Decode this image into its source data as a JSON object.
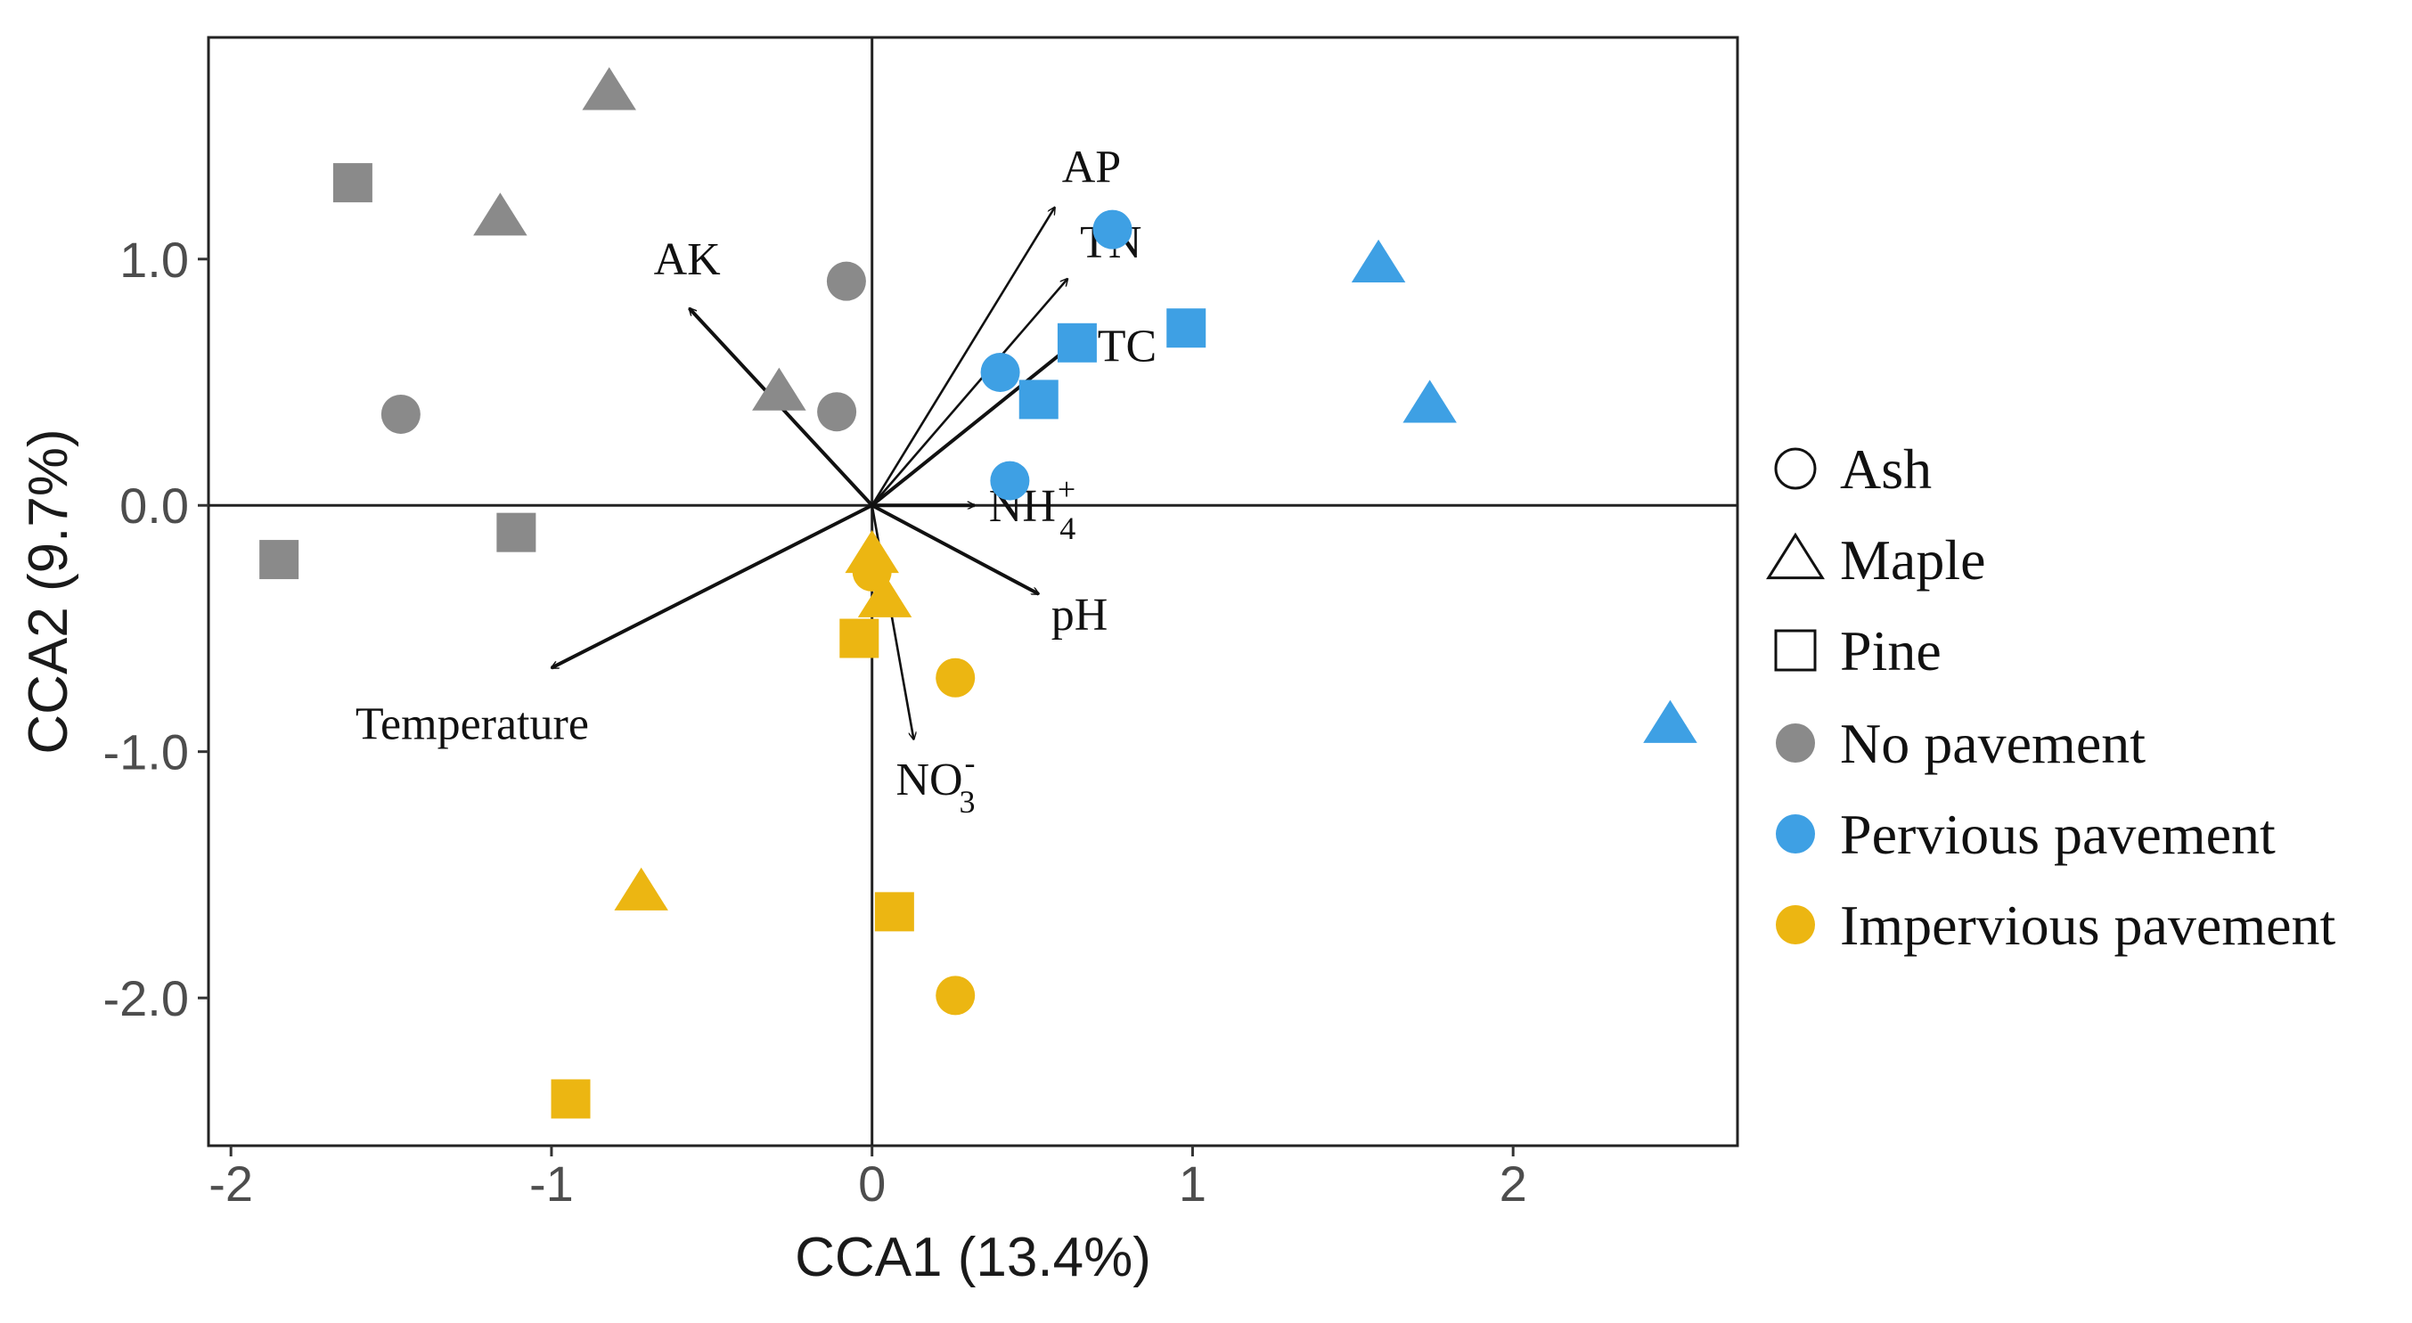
{
  "chart_data": {
    "type": "scatter",
    "title": "",
    "xlabel": "CCA1 (13.4%)",
    "ylabel": "CCA2 (9.7%)",
    "xlim": [
      -2.07,
      2.7
    ],
    "ylim": [
      -2.6,
      1.9
    ],
    "xticks": [
      -2,
      -1,
      0,
      1,
      2
    ],
    "xtick_labels": [
      "-2",
      "-1",
      "0",
      "1",
      "2"
    ],
    "yticks": [
      -2.0,
      -1.0,
      0.0,
      1.0
    ],
    "ytick_labels": [
      "-2.0",
      "-1.0",
      "0.0",
      "1.0"
    ],
    "grid": false,
    "legend_position": "right",
    "colors": {
      "no_pavement": "#8a8a8a",
      "pervious": "#3ea0e4",
      "impervious": "#ecb612"
    },
    "points": [
      {
        "group": "no_pavement",
        "shape": "triangle",
        "x": -0.82,
        "y": 1.68
      },
      {
        "group": "no_pavement",
        "shape": "square",
        "x": -1.62,
        "y": 1.31
      },
      {
        "group": "no_pavement",
        "shape": "triangle",
        "x": -1.16,
        "y": 1.17
      },
      {
        "group": "no_pavement",
        "shape": "circle",
        "x": -0.08,
        "y": 0.91
      },
      {
        "group": "no_pavement",
        "shape": "triangle",
        "x": -0.29,
        "y": 0.46
      },
      {
        "group": "no_pavement",
        "shape": "circle",
        "x": -1.47,
        "y": 0.37
      },
      {
        "group": "no_pavement",
        "shape": "circle",
        "x": -0.11,
        "y": 0.38
      },
      {
        "group": "no_pavement",
        "shape": "square",
        "x": -1.85,
        "y": -0.22
      },
      {
        "group": "no_pavement",
        "shape": "square",
        "x": -1.11,
        "y": -0.11
      },
      {
        "group": "pervious",
        "shape": "circle",
        "x": 0.75,
        "y": 1.12
      },
      {
        "group": "pervious",
        "shape": "triangle",
        "x": 1.58,
        "y": 0.98
      },
      {
        "group": "pervious",
        "shape": "square",
        "x": 0.98,
        "y": 0.72
      },
      {
        "group": "pervious",
        "shape": "square",
        "x": 0.64,
        "y": 0.66
      },
      {
        "group": "pervious",
        "shape": "circle",
        "x": 0.4,
        "y": 0.54
      },
      {
        "group": "pervious",
        "shape": "square",
        "x": 0.52,
        "y": 0.43
      },
      {
        "group": "pervious",
        "shape": "triangle",
        "x": 1.74,
        "y": 0.41
      },
      {
        "group": "pervious",
        "shape": "circle",
        "x": 0.43,
        "y": 0.1
      },
      {
        "group": "pervious",
        "shape": "triangle",
        "x": 2.49,
        "y": -0.89
      },
      {
        "group": "impervious",
        "shape": "triangle",
        "x": 0.0,
        "y": -0.2
      },
      {
        "group": "impervious",
        "shape": "circle",
        "x": 0.0,
        "y": -0.27
      },
      {
        "group": "impervious",
        "shape": "triangle",
        "x": 0.04,
        "y": -0.38
      },
      {
        "group": "impervious",
        "shape": "square",
        "x": -0.04,
        "y": -0.54
      },
      {
        "group": "impervious",
        "shape": "circle",
        "x": 0.26,
        "y": -0.7
      },
      {
        "group": "impervious",
        "shape": "triangle",
        "x": -0.72,
        "y": -1.57
      },
      {
        "group": "impervious",
        "shape": "square",
        "x": 0.07,
        "y": -1.65
      },
      {
        "group": "impervious",
        "shape": "circle",
        "x": 0.26,
        "y": -1.99
      },
      {
        "group": "impervious",
        "shape": "square",
        "x": -0.94,
        "y": -2.41
      }
    ],
    "arrows": [
      {
        "label": "AP",
        "sub": "",
        "sup": "",
        "x": 0.57,
        "y": 1.21
      },
      {
        "label": "TN",
        "sub": "",
        "sup": "",
        "x": 0.61,
        "y": 0.92
      },
      {
        "label": "TC",
        "sub": "",
        "sup": "",
        "x": 0.67,
        "y": 0.7
      },
      {
        "label": "AK",
        "sub": "",
        "sup": "",
        "x": -0.57,
        "y": 0.8
      },
      {
        "label": "NH",
        "sub": "4",
        "sup": "+",
        "x": 0.32,
        "y": 0.0
      },
      {
        "label": "pH",
        "sub": "",
        "sup": "",
        "x": 0.52,
        "y": -0.36
      },
      {
        "label": "NO",
        "sub": "3",
        "sup": "-",
        "x": 0.13,
        "y": -0.95
      },
      {
        "label": "Temperature",
        "sub": "",
        "sup": "",
        "x": -1.0,
        "y": -0.66
      }
    ],
    "legend": {
      "shapes": [
        {
          "shape": "circle",
          "label": "Ash"
        },
        {
          "shape": "triangle",
          "label": "Maple"
        },
        {
          "shape": "square",
          "label": "Pine"
        }
      ],
      "groups": [
        {
          "group": "no_pavement",
          "label": "No pavement"
        },
        {
          "group": "pervious",
          "label": "Pervious pavement"
        },
        {
          "group": "impervious",
          "label": "Impervious pavement"
        }
      ]
    }
  }
}
